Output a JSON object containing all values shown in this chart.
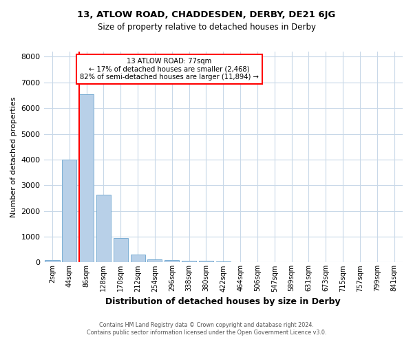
{
  "title_line1": "13, ATLOW ROAD, CHADDESDEN, DERBY, DE21 6JG",
  "title_line2": "Size of property relative to detached houses in Derby",
  "xlabel": "Distribution of detached houses by size in Derby",
  "ylabel": "Number of detached properties",
  "footnote_line1": "Contains HM Land Registry data © Crown copyright and database right 2024.",
  "footnote_line2": "Contains public sector information licensed under the Open Government Licence v3.0.",
  "bar_labels": [
    "2sqm",
    "44sqm",
    "86sqm",
    "128sqm",
    "170sqm",
    "212sqm",
    "254sqm",
    "296sqm",
    "338sqm",
    "380sqm",
    "422sqm",
    "464sqm",
    "506sqm",
    "547sqm",
    "589sqm",
    "631sqm",
    "673sqm",
    "715sqm",
    "757sqm",
    "799sqm",
    "841sqm"
  ],
  "bar_values": [
    80,
    4000,
    6550,
    2620,
    960,
    310,
    120,
    100,
    65,
    55,
    30,
    0,
    0,
    0,
    0,
    0,
    0,
    0,
    0,
    0,
    0
  ],
  "bar_color": "#b8d0e8",
  "bar_edge_color": "#7aaed4",
  "annotation_line1": "13 ATLOW ROAD: 77sqm",
  "annotation_line2": "← 17% of detached houses are smaller (2,468)",
  "annotation_line3": "82% of semi-detached houses are larger (11,894) →",
  "annotation_box_color": "white",
  "annotation_box_edge": "red",
  "vline_color": "red",
  "vline_index": 1.575,
  "ylim": [
    0,
    8200
  ],
  "yticks": [
    0,
    1000,
    2000,
    3000,
    4000,
    5000,
    6000,
    7000,
    8000
  ],
  "background_color": "white",
  "grid_color": "#c8d8e8",
  "title1_fontsize": 9.5,
  "title2_fontsize": 8.5,
  "xlabel_fontsize": 9.0,
  "ylabel_fontsize": 8.0,
  "tick_fontsize": 7.0,
  "footnote_fontsize": 5.8
}
